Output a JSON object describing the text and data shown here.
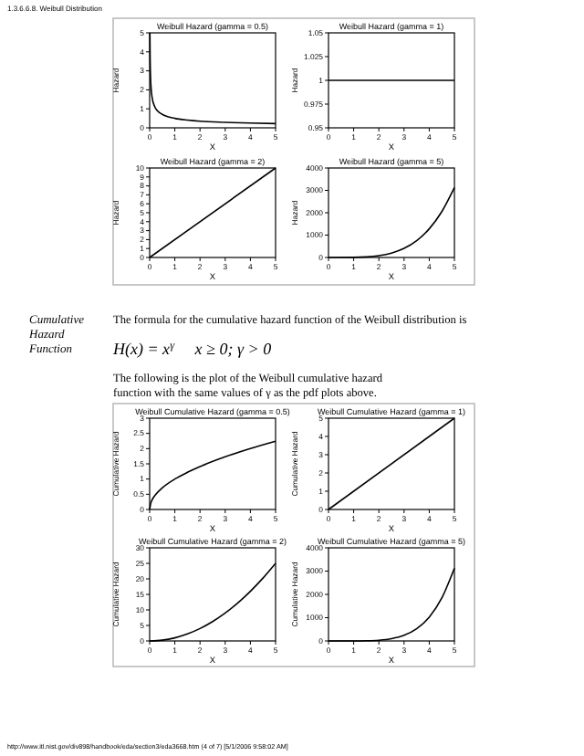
{
  "chart_data": [
    {
      "type": "other",
      "annotations": [
        "1.3.6.6.8. Weibull Distribution"
      ]
    },
    {
      "type": "line",
      "title": "Weibull Hazard (gamma = 0.5)",
      "xlabel": "X",
      "ylabel": "Hazard",
      "color": "#000000",
      "x": [
        0.01,
        0.02,
        0.05,
        0.1,
        0.2,
        0.3,
        0.5,
        0.75,
        1,
        1.5,
        2,
        3,
        4,
        5
      ],
      "values": [
        5,
        3.54,
        2.24,
        1.58,
        1.12,
        0.91,
        0.71,
        0.58,
        0.5,
        0.41,
        0.35,
        0.29,
        0.25,
        0.22
      ],
      "xlim": [
        0,
        5
      ],
      "ylim": [
        0,
        5
      ],
      "xticks": [
        0,
        1,
        2,
        3,
        4,
        5
      ],
      "yticks": [
        0,
        1,
        2,
        3,
        4,
        5
      ]
    },
    {
      "type": "line",
      "title": "Weibull Hazard (gamma = 1)",
      "xlabel": "X",
      "ylabel": "Hazard",
      "color": "#000000",
      "x": [
        0,
        5
      ],
      "values": [
        1,
        1
      ],
      "xlim": [
        0,
        5
      ],
      "ylim": [
        0.95,
        1.05
      ],
      "xticks": [
        0,
        1,
        2,
        3,
        4,
        5
      ],
      "yticks": [
        0.95,
        0.975,
        1,
        1.025,
        1.05
      ]
    },
    {
      "type": "line",
      "title": "Weibull Hazard (gamma = 2)",
      "xlabel": "X",
      "ylabel": "Hazard",
      "color": "#000000",
      "x": [
        0,
        5
      ],
      "values": [
        0,
        10
      ],
      "xlim": [
        0,
        5
      ],
      "ylim": [
        0,
        10
      ],
      "xticks": [
        0,
        1,
        2,
        3,
        4,
        5
      ],
      "yticks": [
        0,
        1,
        2,
        3,
        4,
        5,
        6,
        7,
        8,
        9,
        10
      ]
    },
    {
      "type": "line",
      "title": "Weibull Hazard (gamma = 5)",
      "xlabel": "X",
      "ylabel": "Hazard",
      "color": "#000000",
      "x": [
        0,
        1,
        1.5,
        2,
        2.5,
        3,
        3.5,
        4,
        4.5,
        5
      ],
      "values": [
        0,
        5,
        25,
        80,
        195,
        405,
        750,
        1280,
        2050,
        3125
      ],
      "xlim": [
        0,
        5
      ],
      "ylim": [
        0,
        4000
      ],
      "xticks": [
        0,
        1,
        2,
        3,
        4,
        5
      ],
      "yticks": [
        0,
        1000,
        2000,
        3000,
        4000
      ]
    },
    {
      "type": "other",
      "annotations": [
        "Cumulative Hazard Function",
        "The formula for the cumulative hazard function of the Weibull distribution is",
        "H(x) = x$^{γ}$     x ≥ 0; γ > 0",
        "The following is the plot of the Weibull cumulative hazard function with the same values of γ as the pdf plots above."
      ]
    },
    {
      "type": "line",
      "title": "Weibull Cumulative Hazard (gamma = 0.5)",
      "xlabel": "X",
      "ylabel": "Cumulative Hazard",
      "color": "#000000",
      "x": [
        0,
        0.05,
        0.1,
        0.25,
        0.5,
        1,
        1.5,
        2,
        3,
        4,
        5
      ],
      "values": [
        0,
        0.22,
        0.32,
        0.5,
        0.71,
        1,
        1.22,
        1.41,
        1.73,
        2,
        2.24
      ],
      "xlim": [
        0,
        5
      ],
      "ylim": [
        0,
        3
      ],
      "xticks": [
        0,
        1,
        2,
        3,
        4,
        5
      ],
      "yticks": [
        0,
        0.5,
        1,
        1.5,
        2,
        2.5,
        3
      ]
    },
    {
      "type": "line",
      "title": "Weibull Cumulative Hazard (gamma = 1)",
      "xlabel": "X",
      "ylabel": "Cumulative Hazard",
      "color": "#000000",
      "x": [
        0,
        5
      ],
      "values": [
        0,
        5
      ],
      "xlim": [
        0,
        5
      ],
      "ylim": [
        0,
        5
      ],
      "xticks": [
        0,
        1,
        2,
        3,
        4,
        5
      ],
      "yticks": [
        0,
        1,
        2,
        3,
        4,
        5
      ]
    },
    {
      "type": "line",
      "title": "Weibull Cumulative Hazard (gamma = 2)",
      "xlabel": "X",
      "ylabel": "Cumulative Hazard",
      "color": "#000000",
      "x": [
        0,
        0.5,
        1,
        1.5,
        2,
        2.5,
        3,
        3.5,
        4,
        4.5,
        5
      ],
      "values": [
        0,
        0.25,
        1,
        2.25,
        4,
        6.25,
        9,
        12.25,
        16,
        20.25,
        25
      ],
      "xlim": [
        0,
        5
      ],
      "ylim": [
        0,
        30
      ],
      "xticks": [
        0,
        1,
        2,
        3,
        4,
        5
      ],
      "yticks": [
        0,
        5,
        10,
        15,
        20,
        25,
        30
      ]
    },
    {
      "type": "line",
      "title": "Weibull Cumulative Hazard (gamma = 5)",
      "xlabel": "X",
      "ylabel": "Cumulative Hazard",
      "color": "#000000",
      "x": [
        0,
        1,
        1.5,
        2,
        2.5,
        3,
        3.5,
        4,
        4.5,
        5
      ],
      "values": [
        0,
        1,
        8,
        32,
        98,
        243,
        525,
        1024,
        1845,
        3125
      ],
      "xlim": [
        0,
        5
      ],
      "ylim": [
        0,
        4000
      ],
      "xticks": [
        0,
        1,
        2,
        3,
        4,
        5
      ],
      "yticks": [
        0,
        1000,
        2000,
        3000,
        4000
      ]
    },
    {
      "type": "other",
      "annotations": [
        "http://www.itl.nist.gov/div898/handbook/eda/section3/eda3668.htm (4 of 7) [5/1/2006 9:58:02 AM]"
      ]
    }
  ]
}
